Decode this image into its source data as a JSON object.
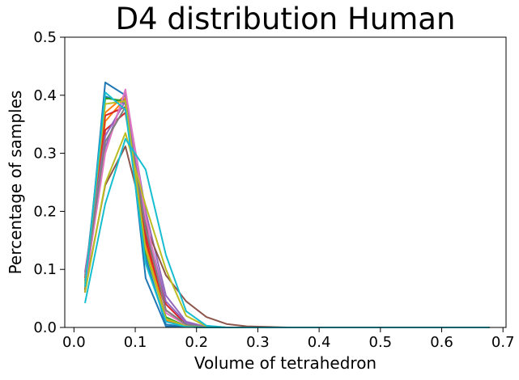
{
  "chart_data": {
    "type": "line",
    "title": "D4 distribution Human",
    "xlabel": "Volume of tetrahedron",
    "ylabel": "Percentage of samples",
    "xlim": [
      -0.015,
      0.705
    ],
    "ylim": [
      0,
      0.5
    ],
    "xticks": [
      0.0,
      0.1,
      0.2,
      0.3,
      0.4,
      0.5,
      0.6,
      0.7
    ],
    "xtick_labels": [
      "0.0",
      "0.1",
      "0.2",
      "0.3",
      "0.4",
      "0.5",
      "0.6",
      "0.7"
    ],
    "yticks": [
      0.0,
      0.1,
      0.2,
      0.3,
      0.4,
      0.5
    ],
    "ytick_labels": [
      "0.0",
      "0.1",
      "0.2",
      "0.3",
      "0.4",
      "0.5"
    ],
    "grid": false,
    "x": [
      0.018,
      0.051,
      0.084,
      0.117,
      0.15,
      0.183,
      0.216,
      0.249,
      0.282,
      0.315,
      0.348,
      0.381,
      0.414,
      0.447,
      0.48,
      0.513,
      0.546,
      0.579,
      0.612,
      0.645,
      0.678
    ],
    "series": [
      {
        "color": "#1f77b4",
        "values": [
          0.06,
          0.422,
          0.4,
          0.085,
          0.002,
          0.001,
          0,
          0,
          0,
          0,
          0,
          0,
          0,
          0,
          0,
          0,
          0,
          0,
          0,
          0,
          0
        ]
      },
      {
        "color": "#1f77b4",
        "values": [
          0.08,
          0.398,
          0.385,
          0.12,
          0.005,
          0.001,
          0,
          0,
          0,
          0,
          0,
          0,
          0,
          0,
          0,
          0,
          0,
          0,
          0,
          0,
          0
        ]
      },
      {
        "color": "#ff7f0e",
        "values": [
          0.07,
          0.355,
          0.395,
          0.15,
          0.015,
          0.002,
          0,
          0,
          0,
          0,
          0,
          0,
          0,
          0,
          0,
          0,
          0,
          0,
          0,
          0,
          0
        ]
      },
      {
        "color": "#ff7f0e",
        "values": [
          0.075,
          0.37,
          0.4,
          0.14,
          0.012,
          0.002,
          0,
          0,
          0,
          0,
          0,
          0,
          0,
          0,
          0,
          0,
          0,
          0,
          0,
          0,
          0
        ]
      },
      {
        "color": "#2ca02c",
        "values": [
          0.065,
          0.395,
          0.39,
          0.13,
          0.018,
          0.002,
          0,
          0,
          0,
          0,
          0,
          0,
          0,
          0,
          0,
          0,
          0,
          0,
          0,
          0,
          0
        ]
      },
      {
        "color": "#d62728",
        "values": [
          0.06,
          0.34,
          0.37,
          0.16,
          0.04,
          0.005,
          0,
          0,
          0,
          0,
          0,
          0,
          0,
          0,
          0,
          0,
          0,
          0,
          0,
          0,
          0
        ]
      },
      {
        "color": "#d62728",
        "values": [
          0.085,
          0.365,
          0.38,
          0.15,
          0.03,
          0.004,
          0,
          0,
          0,
          0,
          0,
          0,
          0,
          0,
          0,
          0,
          0,
          0,
          0,
          0,
          0
        ]
      },
      {
        "color": "#9467bd",
        "values": [
          0.09,
          0.31,
          0.405,
          0.2,
          0.055,
          0.01,
          0.001,
          0,
          0,
          0,
          0,
          0,
          0,
          0,
          0,
          0,
          0,
          0,
          0,
          0,
          0
        ]
      },
      {
        "color": "#9467bd",
        "values": [
          0.095,
          0.33,
          0.39,
          0.18,
          0.045,
          0.008,
          0.001,
          0,
          0,
          0,
          0,
          0,
          0,
          0,
          0,
          0,
          0,
          0,
          0,
          0,
          0
        ]
      },
      {
        "color": "#8c564b",
        "values": [
          0.065,
          0.245,
          0.312,
          0.175,
          0.09,
          0.045,
          0.018,
          0.006,
          0.002,
          0.001,
          0,
          0,
          0,
          0,
          0,
          0,
          0,
          0,
          0,
          0,
          0
        ]
      },
      {
        "color": "#e377c2",
        "values": [
          0.07,
          0.3,
          0.41,
          0.19,
          0.025,
          0.004,
          0,
          0,
          0,
          0,
          0,
          0,
          0,
          0,
          0,
          0,
          0,
          0,
          0,
          0,
          0
        ]
      },
      {
        "color": "#7f7f7f",
        "values": [
          0.08,
          0.32,
          0.38,
          0.17,
          0.03,
          0.005,
          0,
          0,
          0,
          0,
          0,
          0,
          0,
          0,
          0,
          0,
          0,
          0,
          0,
          0,
          0
        ]
      },
      {
        "color": "#bcbd22",
        "values": [
          0.06,
          0.248,
          0.335,
          0.21,
          0.1,
          0.02,
          0.002,
          0,
          0,
          0,
          0,
          0,
          0,
          0,
          0,
          0,
          0,
          0,
          0,
          0,
          0
        ]
      },
      {
        "color": "#bcbd22",
        "values": [
          0.075,
          0.385,
          0.39,
          0.135,
          0.015,
          0.002,
          0,
          0,
          0,
          0,
          0,
          0,
          0,
          0,
          0,
          0,
          0,
          0,
          0,
          0,
          0
        ]
      },
      {
        "color": "#17becf",
        "values": [
          0.042,
          0.213,
          0.325,
          0.272,
          0.125,
          0.028,
          0.003,
          0,
          0,
          0,
          0,
          0,
          0,
          0,
          0,
          0,
          0,
          0,
          0,
          0,
          0
        ]
      },
      {
        "color": "#17becf",
        "values": [
          0.07,
          0.405,
          0.375,
          0.11,
          0.01,
          0.001,
          0,
          0,
          0,
          0,
          0,
          0,
          0,
          0,
          0,
          0,
          0,
          0,
          0,
          0,
          0
        ]
      }
    ]
  }
}
